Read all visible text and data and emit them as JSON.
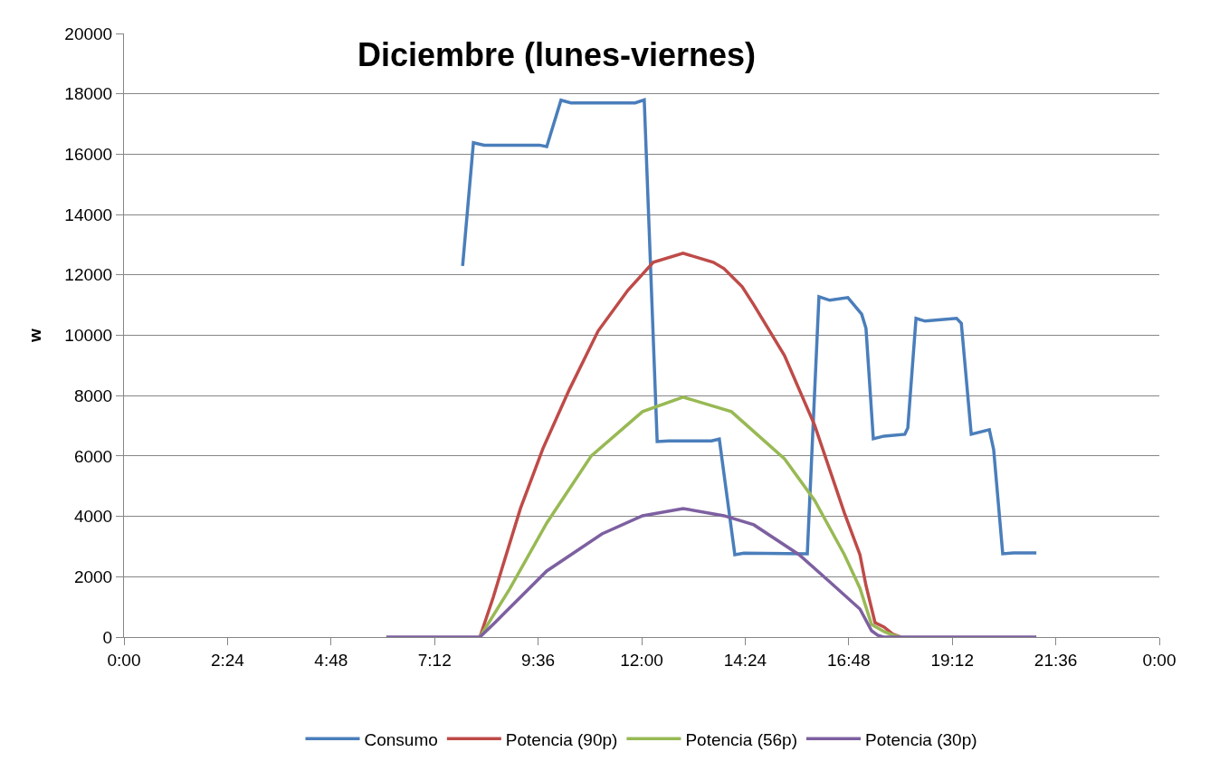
{
  "chart_data": {
    "type": "line",
    "title": "Diciembre (lunes-viernes)",
    "ylabel": "w",
    "xlim": [
      0,
      24
    ],
    "xticks": [
      {
        "value": 0,
        "label": "0:00"
      },
      {
        "value": 2.4,
        "label": "2:24"
      },
      {
        "value": 4.8,
        "label": "4:48"
      },
      {
        "value": 7.2,
        "label": "7:12"
      },
      {
        "value": 9.6,
        "label": "9:36"
      },
      {
        "value": 12,
        "label": "12:00"
      },
      {
        "value": 14.4,
        "label": "14:24"
      },
      {
        "value": 16.8,
        "label": "16:48"
      },
      {
        "value": 19.2,
        "label": "19:12"
      },
      {
        "value": 21.6,
        "label": "21:36"
      },
      {
        "value": 24,
        "label": "0:00"
      }
    ],
    "ylim": [
      0,
      20000
    ],
    "yticks": [
      0,
      2000,
      4000,
      6000,
      8000,
      10000,
      12000,
      14000,
      16000,
      18000,
      20000
    ],
    "grid": "y",
    "legend": "bottom",
    "line_style": "solid",
    "marker": "none",
    "series": [
      {
        "name": "Consumo",
        "color": "#4a7ebb",
        "x": [
          7.85,
          8.1,
          8.35,
          9.63,
          9.8,
          10.13,
          10.36,
          11.85,
          12.06,
          12.36,
          12.63,
          13.62,
          13.8,
          14.16,
          14.37,
          15.84,
          16.11,
          16.36,
          16.78,
          17.1,
          17.2,
          17.37,
          17.62,
          18.1,
          18.17,
          18.36,
          18.57,
          19.3,
          19.41,
          19.64,
          20.06,
          20.16,
          20.37,
          20.62,
          21.15
        ],
        "values": [
          12300,
          16380,
          16300,
          16300,
          16250,
          17790,
          17700,
          17700,
          17800,
          6480,
          6500,
          6500,
          6560,
          2730,
          2780,
          2760,
          11280,
          11160,
          11250,
          10700,
          10230,
          6570,
          6660,
          6720,
          6930,
          10560,
          10470,
          10560,
          10400,
          6720,
          6870,
          6210,
          2760,
          2790,
          2790
        ]
      },
      {
        "name": "Potencia (90p)",
        "color": "#be4b48",
        "x": [
          8.25,
          8.56,
          8.77,
          9.19,
          9.71,
          10.32,
          10.99,
          11.68,
          12.27,
          12.96,
          13.66,
          13.91,
          14.33,
          14.6,
          15.31,
          16.01,
          16.7,
          17.06,
          17.2,
          17.41,
          17.62,
          17.83,
          18.0
        ],
        "values": [
          0,
          1320,
          2310,
          4260,
          6240,
          8190,
          10140,
          11490,
          12420,
          12720,
          12420,
          12210,
          11610,
          11010,
          9330,
          7020,
          4110,
          2730,
          1710,
          480,
          330,
          90,
          0
        ]
      },
      {
        "name": "Potencia (56p)",
        "color": "#98b954",
        "x": [
          8.25,
          8.94,
          9.8,
          10.83,
          12.02,
          12.96,
          14.08,
          14.6,
          15.31,
          16.01,
          16.7,
          17.06,
          17.33,
          17.62,
          17.83,
          18.0
        ],
        "values": [
          0,
          1590,
          3780,
          6000,
          7470,
          7950,
          7470,
          6810,
          5910,
          4530,
          2730,
          1620,
          420,
          180,
          60,
          0
        ]
      },
      {
        "name": "Potencia (30p)",
        "color": "#7d60a0",
        "x": [
          6.08,
          7.0,
          8.0,
          8.25,
          8.6,
          8.85,
          9.8,
          11.08,
          12.02,
          12.96,
          13.91,
          14.6,
          15.65,
          16.36,
          17.06,
          17.33,
          17.47,
          17.6,
          18.5,
          19.5,
          20.5,
          21.15
        ],
        "values": [
          0,
          0,
          0,
          0,
          480,
          840,
          2190,
          3420,
          4020,
          4260,
          4020,
          3720,
          2730,
          1830,
          930,
          210,
          60,
          0,
          0,
          0,
          0,
          0
        ]
      }
    ]
  }
}
